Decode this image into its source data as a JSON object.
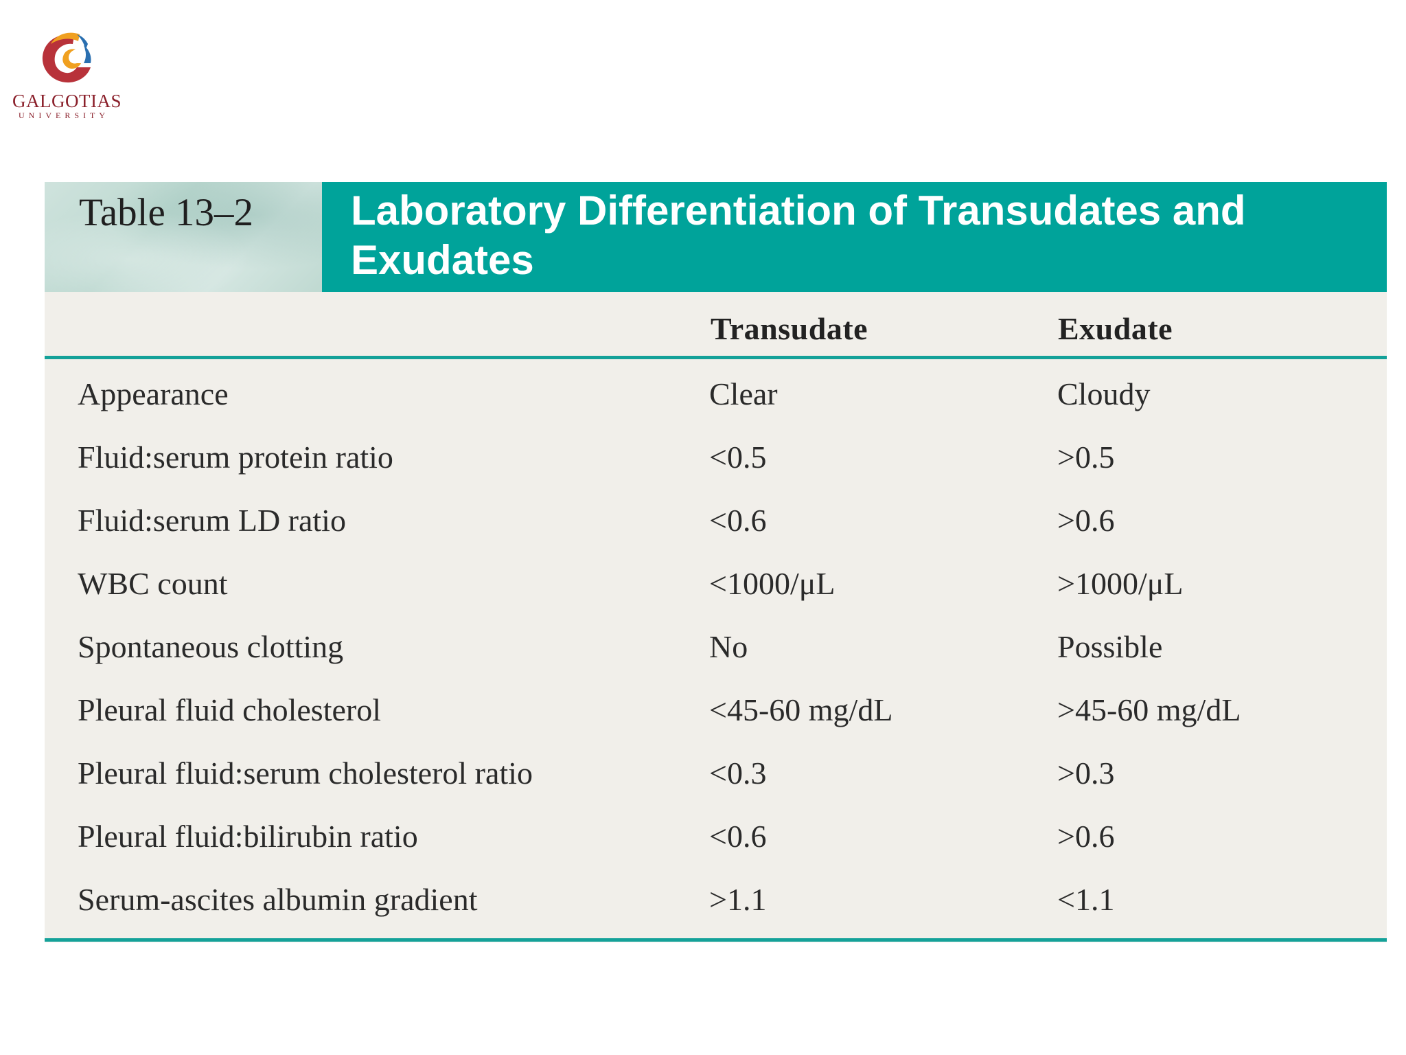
{
  "logo": {
    "name": "GALGOTIAS",
    "subtitle": "UNIVERSITY",
    "colors": {
      "orange": "#f0a020",
      "red": "#b8323a",
      "blue": "#2a6fb0"
    }
  },
  "table": {
    "label": "Table 13–2",
    "title": "Laboratory Differentiation of Transudates and Exudates",
    "accent_color": "#00a39a",
    "columns": [
      "",
      "Transudate",
      "Exudate"
    ],
    "rows": [
      {
        "param": "Appearance",
        "transudate": "Clear",
        "exudate": "Cloudy"
      },
      {
        "param": "Fluid:serum protein ratio",
        "transudate": "<0.5",
        "exudate": ">0.5"
      },
      {
        "param": "Fluid:serum LD ratio",
        "transudate": "<0.6",
        "exudate": ">0.6"
      },
      {
        "param": "WBC count",
        "transudate": "<1000/μL",
        "exudate": ">1000/μL"
      },
      {
        "param": "Spontaneous clotting",
        "transudate": "No",
        "exudate": "Possible"
      },
      {
        "param": "Pleural fluid cholesterol",
        "transudate": "<45-60 mg/dL",
        "exudate": ">45-60 mg/dL"
      },
      {
        "param": "Pleural fluid:serum cholesterol ratio",
        "transudate": "<0.3",
        "exudate": ">0.3"
      },
      {
        "param": "Pleural fluid:bilirubin ratio",
        "transudate": "<0.6",
        "exudate": ">0.6"
      },
      {
        "param": "Serum-ascites albumin gradient",
        "transudate": ">1.1",
        "exudate": "<1.1"
      }
    ]
  }
}
